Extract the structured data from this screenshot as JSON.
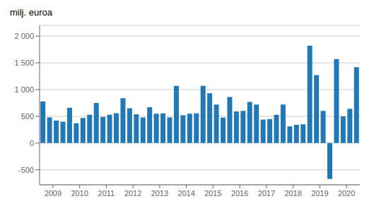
{
  "chart_data": {
    "type": "bar",
    "title": "milj. euroa",
    "categories": [
      null,
      "2009",
      null,
      null,
      null,
      "2010",
      null,
      null,
      null,
      "2011",
      null,
      null,
      null,
      "2012",
      null,
      null,
      null,
      "2013",
      null,
      null,
      null,
      "2014",
      null,
      null,
      null,
      "2015",
      null,
      null,
      null,
      "2016",
      null,
      null,
      null,
      "2017",
      null,
      null,
      null,
      "2018",
      null,
      null,
      null,
      "2019",
      null,
      null,
      null,
      "2020",
      null,
      null
    ],
    "values": [
      780,
      480,
      420,
      400,
      660,
      370,
      470,
      530,
      750,
      490,
      530,
      560,
      840,
      650,
      540,
      480,
      670,
      550,
      555,
      480,
      1070,
      520,
      550,
      555,
      1070,
      930,
      720,
      475,
      860,
      590,
      600,
      770,
      720,
      440,
      450,
      530,
      720,
      310,
      340,
      350,
      1820,
      1270,
      600,
      -670,
      1570,
      500,
      640,
      1420
    ],
    "color": "#2277b5",
    "ylim": [
      -780,
      2200
    ],
    "yticks": [
      -500,
      0,
      500,
      {
        "value": 1000,
        "label": "1 000"
      },
      {
        "value": 1500,
        "label": "1 500"
      },
      {
        "value": 2000,
        "label": "2 000"
      }
    ],
    "grid": true
  }
}
